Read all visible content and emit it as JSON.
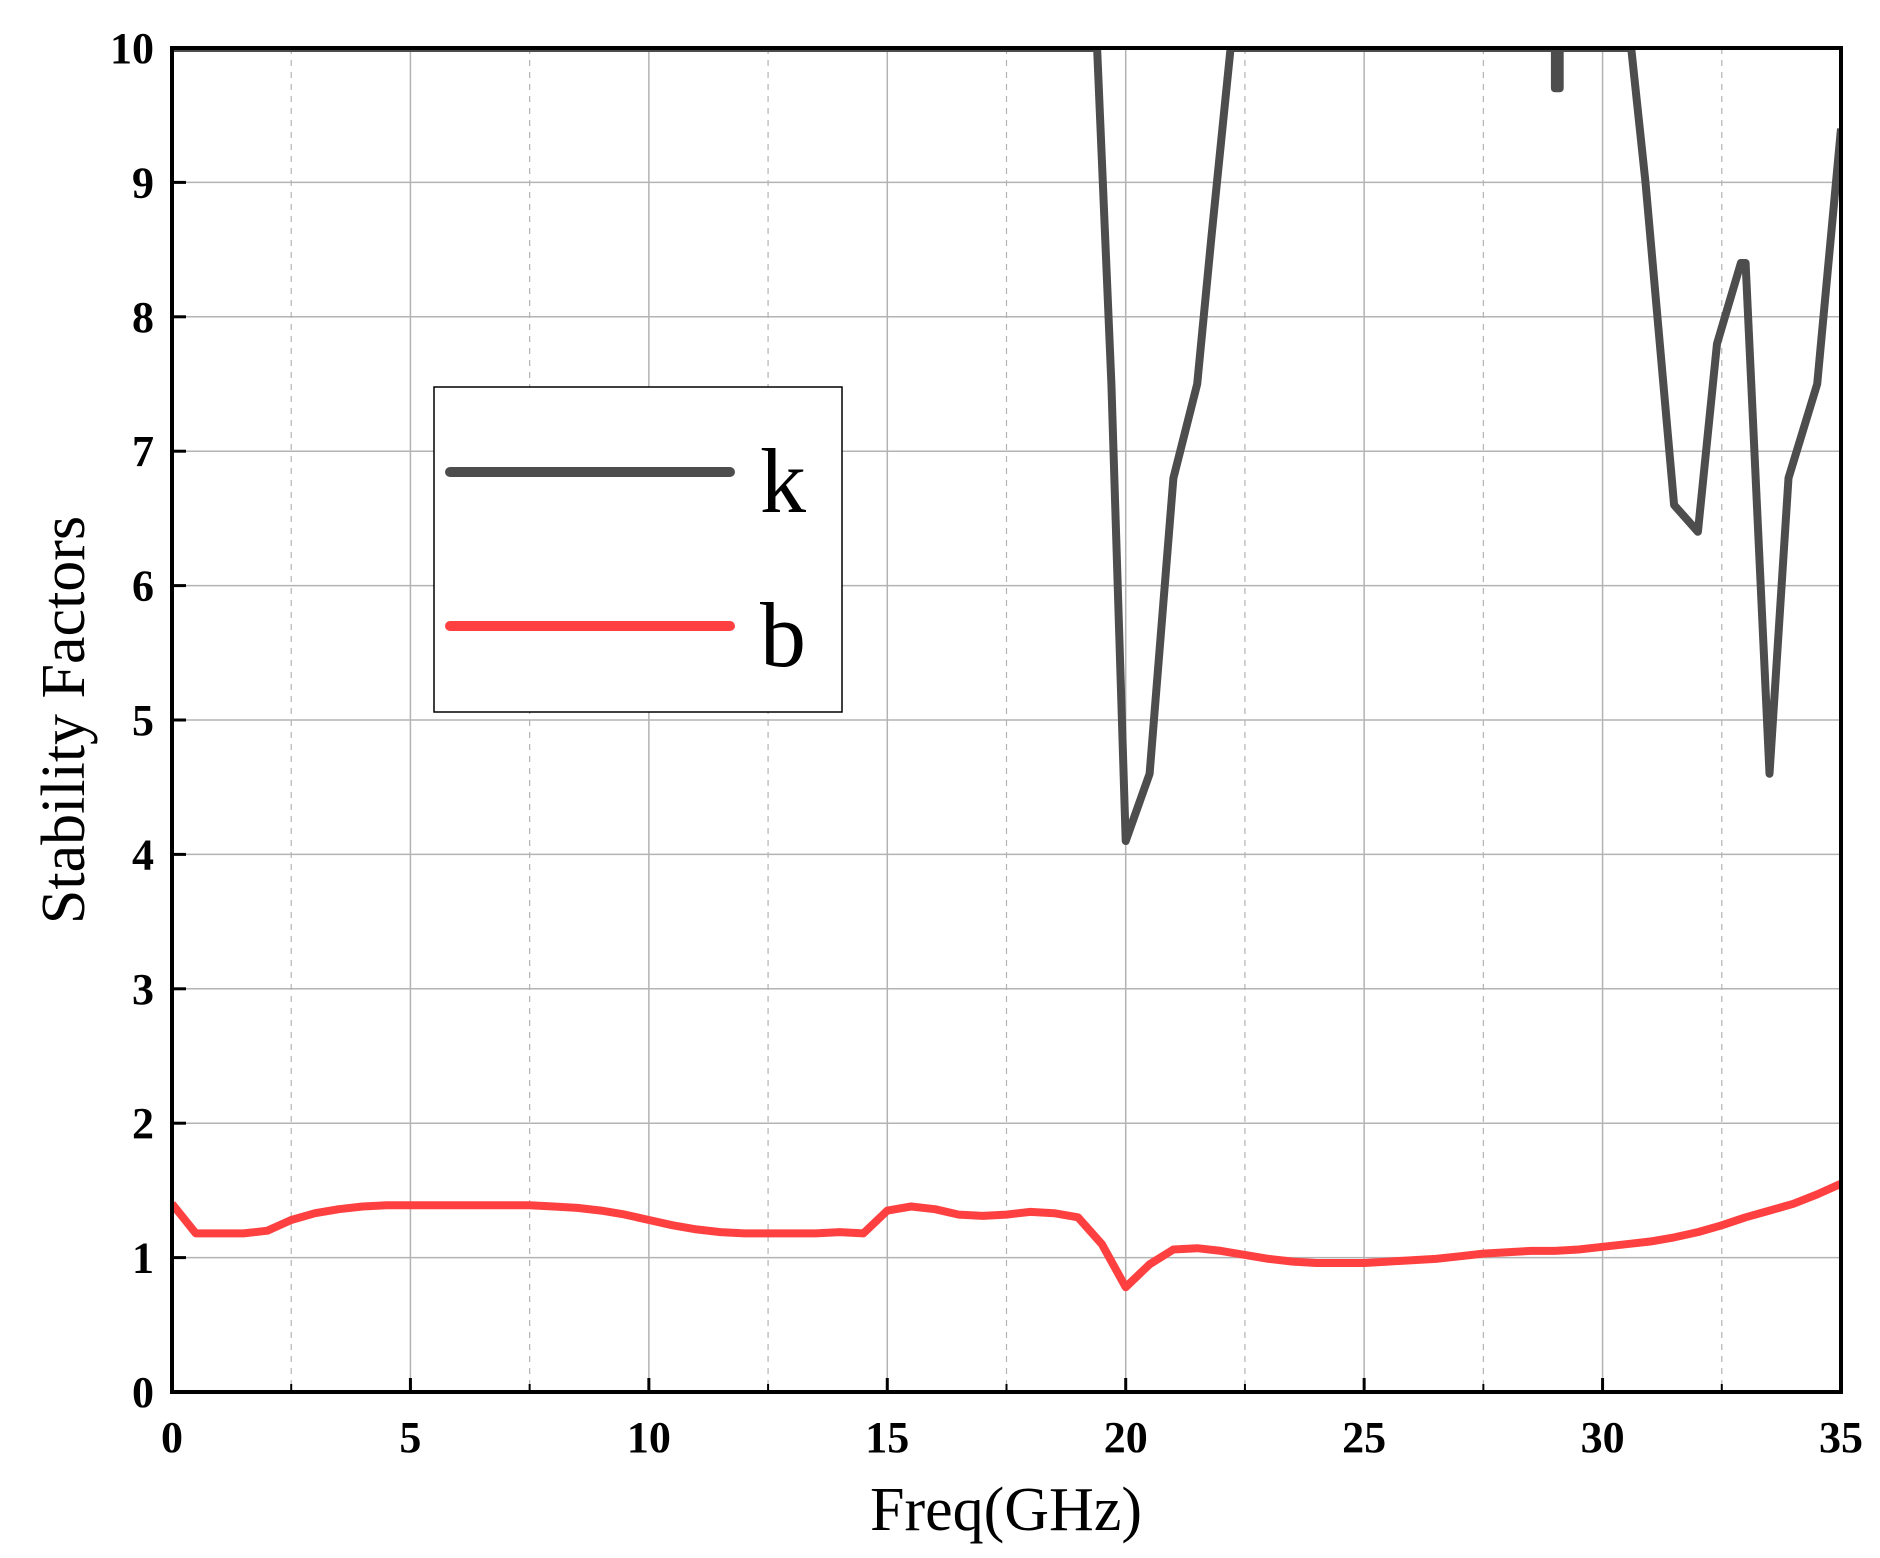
{
  "chart_data": {
    "type": "line",
    "xlabel": "Freq(GHz)",
    "ylabel": "Stability Factors",
    "xlim": [
      0,
      35
    ],
    "ylim": [
      0,
      10
    ],
    "xticks": [
      0,
      5,
      10,
      15,
      20,
      25,
      30,
      35
    ],
    "yticks": [
      0,
      1,
      2,
      3,
      4,
      5,
      6,
      7,
      8,
      9,
      10
    ],
    "grid": true,
    "legend_position": "upper-left",
    "series": [
      {
        "name": "k",
        "color": "#4d4d4d",
        "x": [
          0,
          0,
          19.4,
          19.7,
          20.0,
          20.5,
          21.0,
          21.5,
          21.8,
          22.2,
          29.0,
          29.0,
          29.1,
          29.1,
          30.6,
          30.9,
          31.2,
          31.5,
          32.0,
          32.4,
          32.9,
          33.0,
          33.5,
          33.9,
          34.5,
          35.0,
          35.0
        ],
        "y": [
          10.5,
          10.0,
          10.0,
          7.5,
          4.1,
          4.6,
          6.8,
          7.5,
          8.6,
          10.0,
          10.0,
          9.7,
          9.7,
          10.0,
          10.0,
          9.0,
          7.8,
          6.6,
          6.4,
          7.8,
          8.4,
          8.4,
          4.6,
          6.8,
          7.5,
          9.4,
          9.4
        ]
      },
      {
        "name": "b",
        "color": "#ff4040",
        "x": [
          0,
          0.5,
          1.0,
          1.5,
          2.0,
          2.5,
          3.0,
          3.5,
          4.0,
          4.5,
          5.0,
          5.5,
          6.0,
          6.5,
          7.0,
          7.5,
          8.0,
          8.5,
          9.0,
          9.5,
          10.0,
          10.5,
          11.0,
          11.5,
          12.0,
          12.5,
          13.0,
          13.5,
          14.0,
          14.5,
          15.0,
          15.5,
          16.0,
          16.5,
          17.0,
          17.5,
          18.0,
          18.5,
          19.0,
          19.5,
          20.0,
          20.5,
          21.0,
          21.5,
          22.0,
          22.5,
          23.0,
          23.5,
          24.0,
          24.5,
          25.0,
          25.5,
          26.0,
          26.5,
          27.0,
          27.5,
          28.0,
          28.5,
          29.0,
          29.5,
          30.0,
          30.5,
          31.0,
          31.5,
          32.0,
          32.5,
          33.0,
          33.5,
          34.0,
          34.5,
          35.0
        ],
        "y": [
          1.4,
          1.18,
          1.18,
          1.18,
          1.2,
          1.28,
          1.33,
          1.36,
          1.38,
          1.39,
          1.39,
          1.39,
          1.39,
          1.39,
          1.39,
          1.39,
          1.38,
          1.37,
          1.35,
          1.32,
          1.28,
          1.24,
          1.21,
          1.19,
          1.18,
          1.18,
          1.18,
          1.18,
          1.19,
          1.18,
          1.35,
          1.38,
          1.36,
          1.32,
          1.31,
          1.32,
          1.34,
          1.33,
          1.3,
          1.1,
          0.78,
          0.95,
          1.06,
          1.07,
          1.05,
          1.02,
          0.99,
          0.97,
          0.96,
          0.96,
          0.96,
          0.97,
          0.98,
          0.99,
          1.01,
          1.03,
          1.04,
          1.05,
          1.05,
          1.06,
          1.08,
          1.1,
          1.12,
          1.15,
          1.19,
          1.24,
          1.3,
          1.35,
          1.4,
          1.47,
          1.55
        ]
      }
    ]
  }
}
